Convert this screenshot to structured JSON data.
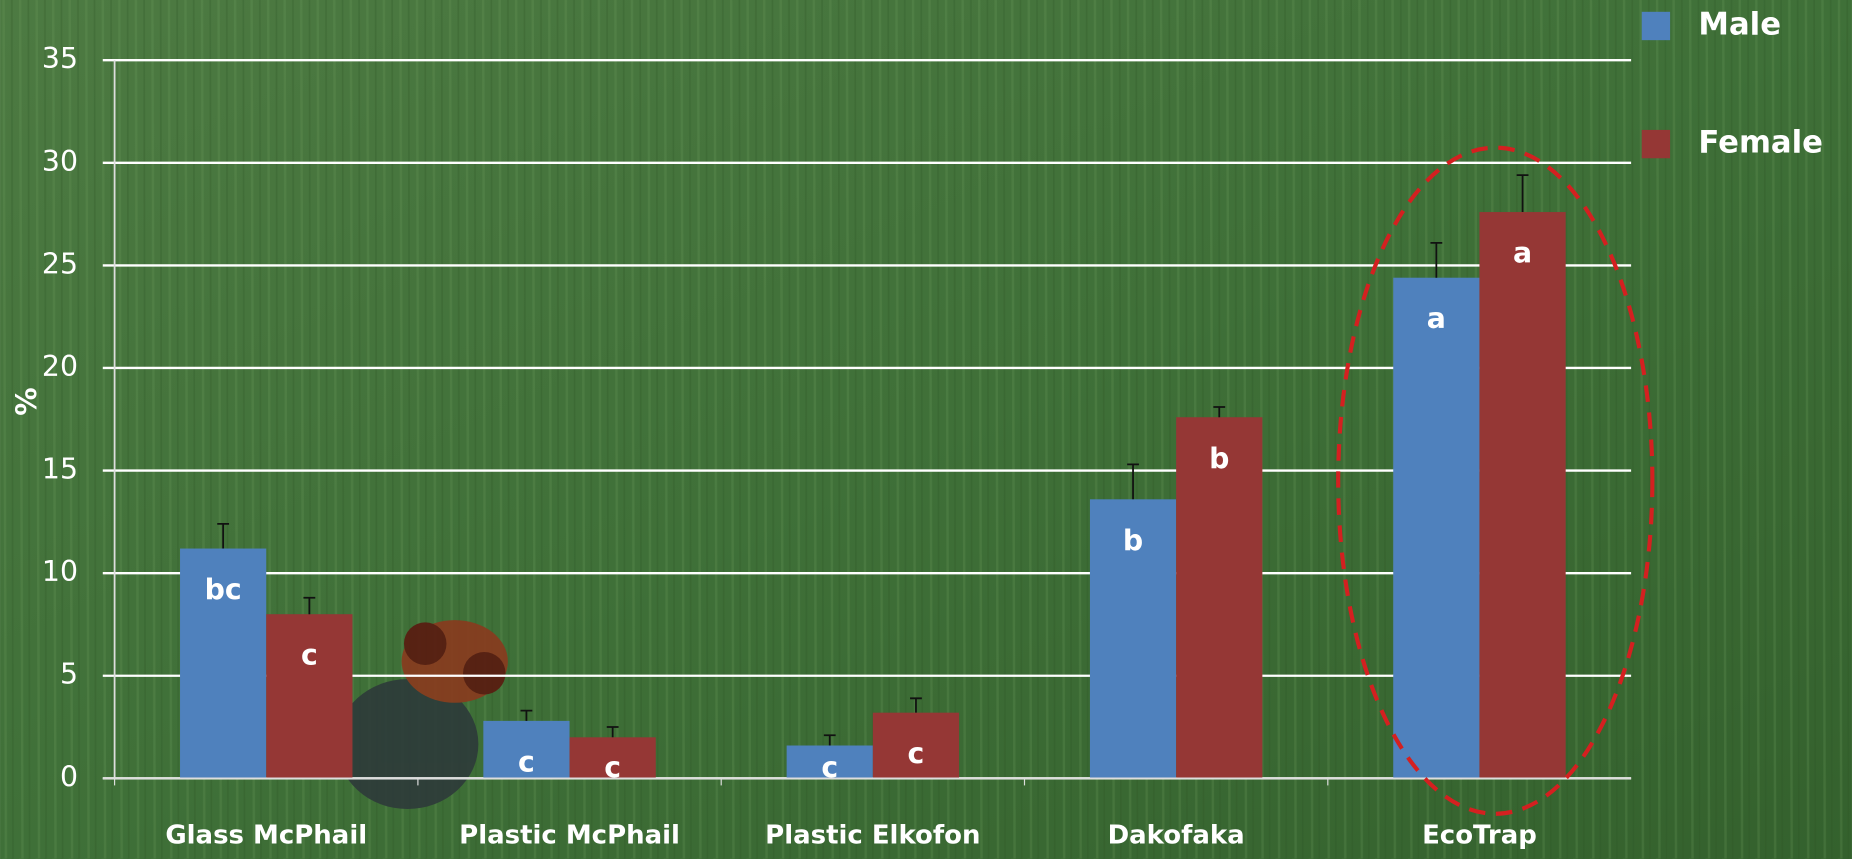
{
  "chart_data": {
    "type": "bar",
    "y_label": "%",
    "categories": [
      "Glass McPhail",
      "Plastic McPhail",
      "Plastic Elkofon",
      "Dakofaka",
      "EcoTrap"
    ],
    "series": [
      {
        "name": "Male",
        "color": "#4f81bd",
        "values": [
          11.2,
          2.8,
          1.6,
          13.6,
          24.4
        ],
        "errors": [
          1.2,
          0.5,
          0.5,
          1.7,
          1.7
        ],
        "letters": [
          "bc",
          "c",
          "c",
          "b",
          "a"
        ]
      },
      {
        "name": "Female",
        "color": "#953735",
        "values": [
          8.0,
          2.0,
          3.2,
          17.6,
          27.6
        ],
        "errors": [
          0.8,
          0.5,
          0.7,
          0.5,
          1.8
        ],
        "letters": [
          "c",
          "c",
          "c",
          "b",
          "a"
        ]
      }
    ],
    "ylim": [
      0,
      35
    ],
    "yticks": [
      0,
      5,
      10,
      15,
      20,
      25,
      30,
      35
    ],
    "grid": true,
    "legend": "top-right"
  }
}
